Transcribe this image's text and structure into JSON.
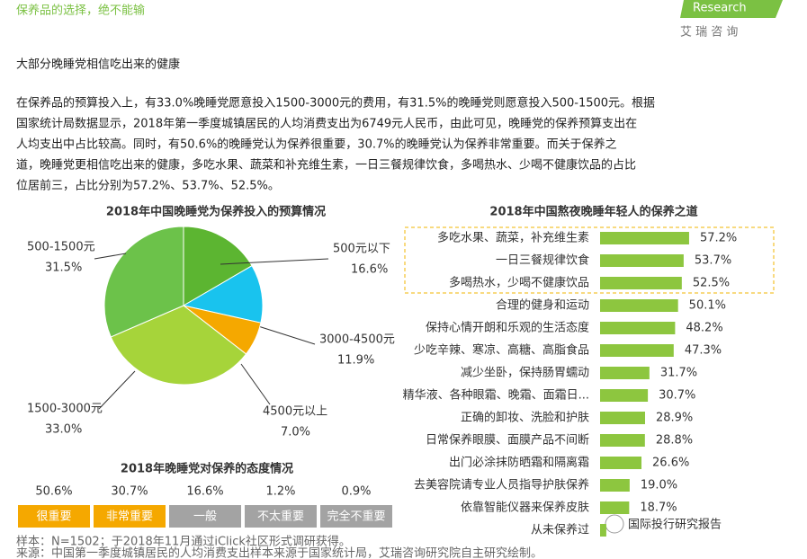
{
  "header": {
    "title": "保养品的选择，绝不能输",
    "subtitle": "大部分晚睡党相信吃出来的健康",
    "logo": "Research",
    "logo_cn": "艾 瑞 咨 询"
  },
  "body": {
    "lines": [
      "在保养品的预算投入上，有33.0%晚睡党愿意投入1500-3000元的费用，有31.5%的晚睡党则愿意投入500-1500元。根据",
      "国家统计局数据显示，2018年第一季度城镇居民的人均消费支出为6749元人民币，由此可见，晚睡党的保养预算支出在",
      "人均支出中占比较高。同时，有50.6%的晚睡党认为保养很重要，30.7%的晚睡党认为保养非常重要。而关于保养之",
      "道，晚睡党更相信吃出来的健康，多吃水果、蔬菜和补充维生素，一日三餐规律饮食，多喝热水、少喝不健康饮品的占比",
      "位居前三，占比分别为57.2%、53.7%、52.5%。"
    ]
  },
  "chart_data": [
    {
      "type": "pie",
      "title": "2018年中国晚睡党为保养投入的预算情况",
      "categories": [
        "500元以下",
        "3000-4500元",
        "4500元以上",
        "1500-3000元",
        "500-1500元"
      ],
      "values": [
        16.6,
        11.9,
        7.0,
        33.0,
        31.5
      ],
      "value_labels": [
        "16.6%",
        "11.9%",
        "7.0%",
        "33.0%",
        "31.5%"
      ],
      "colors": [
        "#5cb531",
        "#19c3ee",
        "#f5a800",
        "#a6d43a",
        "#6cc24a"
      ]
    },
    {
      "type": "boxes",
      "title": "2018年晚睡党对保养的态度情况",
      "categories": [
        "很重要",
        "非常重要",
        "一般",
        "不太重要",
        "完全不重要"
      ],
      "values": [
        50.6,
        30.7,
        16.6,
        1.2,
        0.9
      ],
      "value_labels": [
        "50.6%",
        "30.7%",
        "16.6%",
        "1.2%",
        "0.9%"
      ],
      "colors": [
        "#f5a800",
        "#f5a800",
        "#a3a3a3",
        "#a3a3a3",
        "#a3a3a3"
      ]
    },
    {
      "type": "hbar",
      "title": "2018年中国熬夜晚睡年轻人的保养之道",
      "color": "#8dc63f",
      "categories": [
        "多吃水果、蔬菜，补充维生素",
        "一日三餐规律饮食",
        "多喝热水，少喝不健康饮品",
        "合理的健身和运动",
        "保持心情开朗和乐观的生活态度",
        "少吃辛辣、寒凉、高糖、高脂食品",
        "减少坐卧，保持肠胃蠕动",
        "精华液、各种眼霜、晚霜、面霜日...",
        "正确的卸妆、洗脸和护肤",
        "日常保养眼膜、面膜产品不间断",
        "出门必涂抹防晒霜和隔离霜",
        "去美容院请专业人员指导护肤保养",
        "依靠智能仪器来保养皮肤",
        "从未保养过"
      ],
      "values": [
        57.2,
        53.7,
        52.5,
        50.1,
        48.2,
        47.3,
        31.7,
        30.7,
        28.9,
        28.8,
        26.6,
        19.0,
        18.7,
        4
      ],
      "value_labels": [
        "57.2%",
        "53.7%",
        "52.5%",
        "50.1%",
        "48.2%",
        "47.3%",
        "31.7%",
        "30.7%",
        "28.9%",
        "28.8%",
        "26.6%",
        "19.0%",
        "18.7%",
        null
      ]
    }
  ],
  "footer": {
    "sample": "样本：N=1502；于2018年11月通过iClick社区形式调研获得。",
    "source": "来源：中国第一季度城镇居民的人均消费支出样本来源于国家统计局，艾瑞咨询研究院自主研究绘制。",
    "watermark": "国际投行研究报告"
  }
}
